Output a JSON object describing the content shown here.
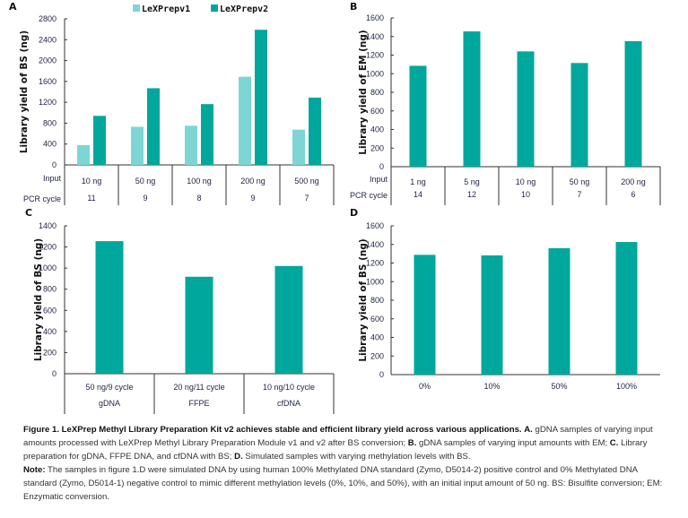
{
  "colors": {
    "v1": "#7dd6d3",
    "v2": "#00a79d",
    "text": "#1e2340"
  },
  "chart_data": [
    {
      "panel": "A",
      "type": "bar",
      "title": "",
      "ylabel": "Library yield of BS (ng)",
      "xlabel": "",
      "ylim": [
        0,
        2800
      ],
      "yticks": [
        0,
        400,
        800,
        1200,
        1600,
        2000,
        2400,
        2800
      ],
      "grid": false,
      "legend": "top-center",
      "categories": [
        "10 ng",
        "50 ng",
        "100 ng",
        "200 ng",
        "500 ng"
      ],
      "table_rows": [
        {
          "label": "Input",
          "values": [
            "10 ng",
            "50 ng",
            "100 ng",
            "200 ng",
            "500 ng"
          ]
        },
        {
          "label": "PCR cycle",
          "values": [
            "11",
            "9",
            "8",
            "9",
            "7"
          ]
        }
      ],
      "series": [
        {
          "name": "LeXPrepv1",
          "values": [
            380,
            730,
            750,
            1690,
            675
          ]
        },
        {
          "name": "LeXPrepv2",
          "values": [
            940,
            1470,
            1165,
            2590,
            1290
          ]
        }
      ]
    },
    {
      "panel": "B",
      "type": "bar",
      "title": "",
      "ylabel": "Library yield of EM (ng)",
      "xlabel": "",
      "ylim": [
        0,
        1600
      ],
      "yticks": [
        0,
        200,
        400,
        600,
        800,
        1000,
        1200,
        1400,
        1600
      ],
      "grid": false,
      "categories": [
        "1 ng",
        "5 ng",
        "10 ng",
        "50 ng",
        "200 ng"
      ],
      "table_rows": [
        {
          "label": "Input",
          "values": [
            "1 ng",
            "5 ng",
            "10 ng",
            "50 ng",
            "200 ng"
          ]
        },
        {
          "label": "PCR cycle",
          "values": [
            "14",
            "12",
            "10",
            "7",
            "6"
          ]
        }
      ],
      "series": [
        {
          "name": "LeXPrepv2",
          "values": [
            1085,
            1455,
            1240,
            1115,
            1350
          ]
        }
      ]
    },
    {
      "panel": "C",
      "type": "bar",
      "title": "",
      "ylabel": "Library yield of BS (ng)",
      "xlabel": "",
      "ylim": [
        0,
        1400
      ],
      "yticks": [
        0,
        200,
        400,
        600,
        800,
        1000,
        1200,
        1400
      ],
      "grid": false,
      "categories": [
        "gDNA",
        "FFPE",
        "cfDNA"
      ],
      "table_rows": [
        {
          "label": "",
          "values": [
            "50 ng/9 cycle",
            "20 ng/11 cycle",
            "10 ng/10 cycle"
          ]
        },
        {
          "label": "",
          "values": [
            "gDNA",
            "FFPE",
            "cfDNA"
          ]
        }
      ],
      "series": [
        {
          "name": "LeXPrepv2",
          "values": [
            1255,
            918,
            1020
          ]
        }
      ]
    },
    {
      "panel": "D",
      "type": "bar",
      "title": "",
      "ylabel": "Library yield of BS (ng)",
      "xlabel": "",
      "ylim": [
        0,
        1600
      ],
      "yticks": [
        0,
        200,
        400,
        600,
        800,
        1000,
        1200,
        1400,
        1600
      ],
      "grid": false,
      "categories": [
        "0%",
        "10%",
        "50%",
        "100%"
      ],
      "series": [
        {
          "name": "LeXPrepv2",
          "values": [
            1288,
            1282,
            1360,
            1426
          ]
        }
      ]
    }
  ],
  "caption": {
    "figure_label": "Figure 1.",
    "title": "LeXPrep Methyl Library Preparation Kit v2 achieves stable and efficient library yield across various applications.",
    "a_label": "A.",
    "a_text": "gDNA samples of varying input amounts processed with LeXPrep Methyl Library Preparation Module v1 and v2 after BS conversion;",
    "b_label": "B.",
    "b_text": "gDNA samples of varying input amounts with EM;",
    "c_label": "C.",
    "c_text": "Library preparation for gDNA, FFPE DNA, and cfDNA with BS;",
    "d_label": "D.",
    "d_text": "Simulated samples with varying methylation levels with BS.",
    "note_label": "Note:",
    "note_text": "The samples in figure 1.D were simulated DNA by using human 100% Methylated DNA standard (Zymo, D5014-2) positive control and 0% Methylated DNA standard (Zymo, D5014-1) negative control to mimic different methylation levels (0%, 10%, and 50%), with an initial input amount of 50 ng. BS: Bisulfite conversion; EM: Enzymatic conversion."
  }
}
